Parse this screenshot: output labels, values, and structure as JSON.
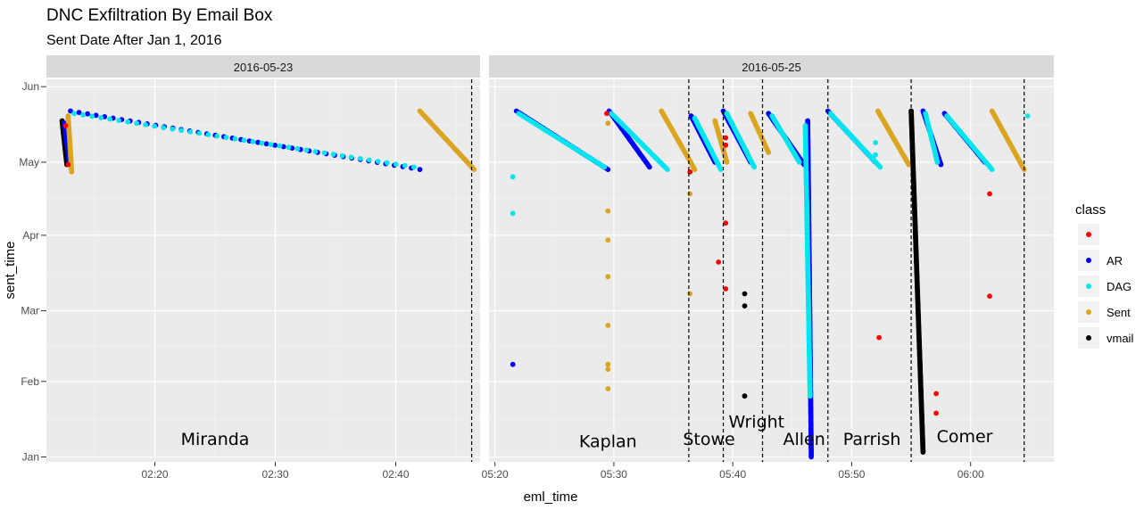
{
  "chart_data": {
    "type": "scatter",
    "title": "DNC Exfiltration By Email Box",
    "subtitle": "Sent Date After Jan 1, 2016",
    "xlabel": "eml_time",
    "ylabel": "sent_time",
    "y_ticks": [
      "Jan",
      "Feb",
      "Mar",
      "Apr",
      "May",
      "Jun"
    ],
    "ylim_days": [
      -2,
      155
    ],
    "legend": {
      "title": "class",
      "position": "right",
      "entries": [
        {
          "name": "",
          "color": "#ff0000"
        },
        {
          "name": "AR",
          "color": "#0000ff"
        },
        {
          "name": "DAG",
          "color": "#00e5ee"
        },
        {
          "name": "Sent",
          "color": "#daa520"
        },
        {
          "name": "vmail",
          "color": "#000000"
        }
      ]
    },
    "panels": [
      {
        "strip": "2016-05-23",
        "xlim": [
          "02:11",
          "02:47"
        ],
        "x_ticks": [
          "02:20",
          "02:30",
          "02:40"
        ],
        "vlines": [
          "02:46.3"
        ],
        "annotations": [
          {
            "text": "Miranda",
            "x": "02:25",
            "y_day": 5
          }
        ],
        "runs": [
          {
            "class": "AR",
            "x0": "02:13.0",
            "x1": "02:42.0",
            "y0": 142,
            "y1": 118
          },
          {
            "class": "DAG",
            "x0": "02:13.3",
            "x1": "02:41.5",
            "y0": 141,
            "y1": 119
          },
          {
            "class": "Sent",
            "x0": "02:42.0",
            "x1": "02:46.5",
            "y0": 142,
            "y1": 118
          },
          {
            "class": "vmail",
            "x0": "02:12.3",
            "x1": "02:12.7",
            "y0": 138,
            "y1": 120
          },
          {
            "class": "AR",
            "x0": "02:12.5",
            "x1": "02:12.9",
            "y0": 137,
            "y1": 121
          },
          {
            "class": "Sent",
            "x0": "02:12.8",
            "x1": "02:13.1",
            "y0": 140,
            "y1": 117
          }
        ],
        "points": [
          {
            "class": "",
            "x": "02:12.8",
            "y": 120
          },
          {
            "class": "",
            "x": "02:12.6",
            "y": 136
          }
        ]
      },
      {
        "strip": "2016-05-25",
        "xlim": [
          "05:19.5",
          "06:07"
        ],
        "x_ticks": [
          "05:20",
          "05:30",
          "05:40",
          "05:50",
          "06:00"
        ],
        "vlines": [
          "05:36.3",
          "05:39.2",
          "05:42.5",
          "05:48.0",
          "05:55.0",
          "06:04.5"
        ],
        "annotations": [
          {
            "text": "Kaplan",
            "x": "05:29.5",
            "y_day": 4
          },
          {
            "text": "Stowe",
            "x": "05:38.0",
            "y_day": 5
          },
          {
            "text": "Wright",
            "x": "05:42.0",
            "y_day": 12
          },
          {
            "text": "Allen",
            "x": "05:46.0",
            "y_day": 5
          },
          {
            "text": "Parrish",
            "x": "05:51.7",
            "y_day": 5
          },
          {
            "text": "Comer",
            "x": "05:59.5",
            "y_day": 6
          }
        ],
        "runs": [
          {
            "class": "AR",
            "x0": "05:21.8",
            "x1": "05:29.5",
            "y0": 142,
            "y1": 118
          },
          {
            "class": "DAG",
            "x0": "05:22.0",
            "x1": "05:29.2",
            "y0": 141,
            "y1": 119
          },
          {
            "class": "AR",
            "x0": "05:29.6",
            "x1": "05:33.0",
            "y0": 142,
            "y1": 119
          },
          {
            "class": "DAG",
            "x0": "05:29.8",
            "x1": "05:34.5",
            "y0": 141,
            "y1": 118
          },
          {
            "class": "Sent",
            "x0": "05:34.0",
            "x1": "05:36.8",
            "y0": 142,
            "y1": 118
          },
          {
            "class": "AR",
            "x0": "05:36.5",
            "x1": "05:38.5",
            "y0": 140,
            "y1": 121
          },
          {
            "class": "DAG",
            "x0": "05:36.8",
            "x1": "05:39.0",
            "y0": 139,
            "y1": 118
          },
          {
            "class": "Sent",
            "x0": "05:38.5",
            "x1": "05:39.5",
            "y0": 138,
            "y1": 121
          },
          {
            "class": "AR",
            "x0": "05:39.2",
            "x1": "05:41.5",
            "y0": 142,
            "y1": 121
          },
          {
            "class": "DAG",
            "x0": "05:39.5",
            "x1": "05:41.8",
            "y0": 141,
            "y1": 119
          },
          {
            "class": "Sent",
            "x0": "05:41.5",
            "x1": "05:43.0",
            "y0": 141,
            "y1": 125
          },
          {
            "class": "AR",
            "x0": "05:43.0",
            "x1": "05:46.0",
            "y0": 141,
            "y1": 120
          },
          {
            "class": "DAG",
            "x0": "05:43.3",
            "x1": "05:45.6",
            "y0": 140,
            "y1": 121
          },
          {
            "class": "AR",
            "x0": "05:46.3",
            "x1": "05:46.6",
            "y0": 138,
            "y1": 0
          },
          {
            "class": "DAG",
            "x0": "05:46.1",
            "x1": "05:46.5",
            "y0": 136,
            "y1": 25
          },
          {
            "class": "AR",
            "x0": "05:48.0",
            "x1": "05:52.0",
            "y0": 142,
            "y1": 121
          },
          {
            "class": "DAG",
            "x0": "05:48.2",
            "x1": "05:52.4",
            "y0": 141,
            "y1": 119
          },
          {
            "class": "Sent",
            "x0": "05:52.2",
            "x1": "05:54.8",
            "y0": 142,
            "y1": 120
          },
          {
            "class": "vmail",
            "x0": "05:55.0",
            "x1": "05:56.0",
            "y0": 142,
            "y1": 2
          },
          {
            "class": "AR",
            "x0": "05:56.0",
            "x1": "05:57.5",
            "y0": 142,
            "y1": 120
          },
          {
            "class": "DAG",
            "x0": "05:56.2",
            "x1": "05:57.2",
            "y0": 141,
            "y1": 121
          },
          {
            "class": "AR",
            "x0": "05:57.8",
            "x1": "06:01.2",
            "y0": 141,
            "y1": 121
          },
          {
            "class": "DAG",
            "x0": "05:58.0",
            "x1": "06:01.8",
            "y0": 140,
            "y1": 118
          },
          {
            "class": "Sent",
            "x0": "06:01.8",
            "x1": "06:04.5",
            "y0": 142,
            "y1": 118
          }
        ],
        "points": [
          {
            "class": "DAG",
            "x": "05:21.5",
            "y": 115
          },
          {
            "class": "DAG",
            "x": "05:21.5",
            "y": 100
          },
          {
            "class": "AR",
            "x": "05:21.5",
            "y": 38
          },
          {
            "class": "Sent",
            "x": "05:29.5",
            "y": 101
          },
          {
            "class": "Sent",
            "x": "05:29.5",
            "y": 89
          },
          {
            "class": "Sent",
            "x": "05:29.5",
            "y": 74
          },
          {
            "class": "Sent",
            "x": "05:29.5",
            "y": 54
          },
          {
            "class": "Sent",
            "x": "05:29.5",
            "y": 38
          },
          {
            "class": "Sent",
            "x": "05:29.5",
            "y": 36
          },
          {
            "class": "Sent",
            "x": "05:29.5",
            "y": 28
          },
          {
            "class": "Sent",
            "x": "05:29.5",
            "y": 137
          },
          {
            "class": "",
            "x": "05:29.4",
            "y": 141
          },
          {
            "class": "Sent",
            "x": "05:36.4",
            "y": 108
          },
          {
            "class": "Sent",
            "x": "05:36.4",
            "y": 67
          },
          {
            "class": "",
            "x": "05:36.4",
            "y": 117
          },
          {
            "class": "",
            "x": "05:39.4",
            "y": 96
          },
          {
            "class": "",
            "x": "05:38.8",
            "y": 80
          },
          {
            "class": "",
            "x": "05:39.4",
            "y": 69
          },
          {
            "class": "",
            "x": "05:39.4",
            "y": 128
          },
          {
            "class": "",
            "x": "05:39.4",
            "y": 131
          },
          {
            "class": "vmail",
            "x": "05:41.0",
            "y": 67
          },
          {
            "class": "vmail",
            "x": "05:41.0",
            "y": 62
          },
          {
            "class": "vmail",
            "x": "05:41.0",
            "y": 25
          },
          {
            "class": "",
            "x": "05:52.3",
            "y": 49
          },
          {
            "class": "DAG",
            "x": "05:52.0",
            "y": 129
          },
          {
            "class": "DAG",
            "x": "05:52.0",
            "y": 124
          },
          {
            "class": "",
            "x": "05:57.1",
            "y": 26
          },
          {
            "class": "",
            "x": "05:57.1",
            "y": 18
          },
          {
            "class": "",
            "x": "06:01.6",
            "y": 108
          },
          {
            "class": "",
            "x": "06:01.6",
            "y": 66
          },
          {
            "class": "DAG",
            "x": "06:04.8",
            "y": 140
          }
        ]
      }
    ]
  }
}
